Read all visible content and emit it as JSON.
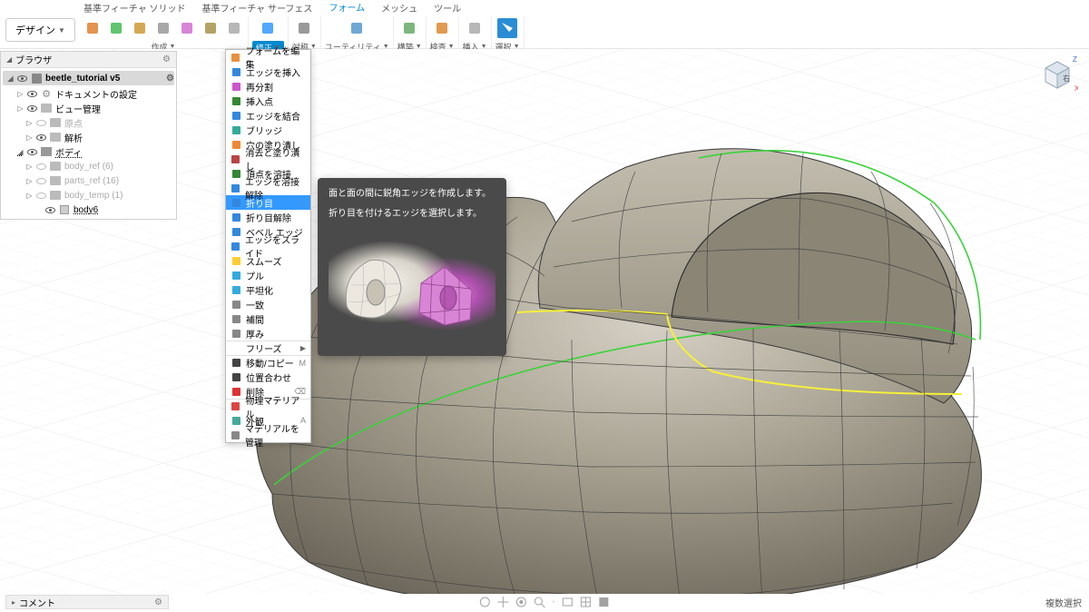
{
  "menuTabs": {
    "items": [
      "基準フィーチャ ソリッド",
      "基準フィーチャ サーフェス",
      "フォーム",
      "メッシュ",
      "ツール"
    ],
    "activeIndex": 2
  },
  "designButton": "デザイン",
  "ribbon": {
    "groups": [
      {
        "label": "作成",
        "icons": [
          {
            "c": "#e08030"
          },
          {
            "c": "#44bb55"
          },
          {
            "c": "#cc9933"
          },
          {
            "c": "#999"
          },
          {
            "c": "#d070d0"
          },
          {
            "c": "#a6944a"
          },
          {
            "c": "#aaa"
          }
        ]
      },
      {
        "label": "修正",
        "icons": [
          {
            "c": "#3399ff"
          }
        ],
        "active": true,
        "activeColor": "#0089d0"
      },
      {
        "label": "対称",
        "icons": [
          {
            "c": "#888"
          }
        ]
      },
      {
        "label": "ユーティリティ",
        "icons": [
          {
            "c": "#5599cc"
          }
        ]
      },
      {
        "label": "構築",
        "icons": [
          {
            "c": "#66aa66"
          }
        ]
      },
      {
        "label": "検査",
        "icons": [
          {
            "c": "#dd8833"
          }
        ]
      },
      {
        "label": "挿入",
        "icons": [
          {
            "c": "#aaa"
          }
        ]
      },
      {
        "label": "選択",
        "icons": [
          {
            "c": "#2a8dd4"
          }
        ],
        "filled": true
      }
    ]
  },
  "browser": {
    "title": "ブラウザ",
    "file": "beetle_tutorial v5",
    "items": [
      {
        "d": 1,
        "exp": "▷",
        "label": "ドキュメントの設定",
        "t": "gear"
      },
      {
        "d": 1,
        "exp": "▷",
        "label": "ビュー管理",
        "t": "folder"
      },
      {
        "d": 2,
        "exp": "▷",
        "label": "原点",
        "t": "folder",
        "dim": true
      },
      {
        "d": 2,
        "exp": "▷",
        "label": "解析",
        "t": "folder"
      },
      {
        "d": 1,
        "exp": "◢",
        "label": "ボディ",
        "t": "bodies",
        "hl": true
      },
      {
        "d": 2,
        "exp": "▷",
        "label": "body_ref (6)",
        "t": "folder",
        "dim": true
      },
      {
        "d": 2,
        "exp": "▷",
        "label": "parts_ref (16)",
        "t": "folder",
        "dim": true
      },
      {
        "d": 2,
        "exp": "▷",
        "label": "body_temp (1)",
        "t": "folder",
        "dim": true
      },
      {
        "d": 3,
        "exp": "",
        "label": "body6",
        "t": "body",
        "hl": true
      }
    ]
  },
  "dropdown": {
    "items": [
      {
        "label": "フォームを編集",
        "c": "#e89040"
      },
      {
        "label": "エッジを挿入",
        "c": "#3388dd"
      },
      {
        "label": "再分割",
        "c": "#cc55cc"
      },
      {
        "label": "挿入点",
        "c": "#338833"
      },
      {
        "label": "エッジを結合",
        "c": "#3388dd"
      },
      {
        "label": "ブリッジ",
        "c": "#33aa99"
      },
      {
        "label": "穴の塗り潰し",
        "c": "#ee8833"
      },
      {
        "label": "消去と塗り潰し",
        "c": "#bb4444"
      },
      {
        "label": "頂点を溶接",
        "c": "#338833"
      },
      {
        "label": "エッジを溶接解除",
        "c": "#3388dd"
      },
      {
        "label": "折り目",
        "c": "#3388dd",
        "hl": true,
        "dots": true
      },
      {
        "label": "折り目解除",
        "c": "#3388dd"
      },
      {
        "label": "ベベル エッジ",
        "c": "#3388dd"
      },
      {
        "label": "エッジをスライド",
        "c": "#3388dd"
      },
      {
        "label": "スムーズ",
        "c": "#ffcc33"
      },
      {
        "label": "プル",
        "c": "#33aadd"
      },
      {
        "label": "平坦化",
        "c": "#33aadd"
      },
      {
        "label": "一致",
        "c": "#888"
      },
      {
        "label": "補間",
        "c": "#888"
      },
      {
        "label": "厚み",
        "c": "#888"
      },
      {
        "label": "フリーズ",
        "sub": true,
        "sep": true
      },
      {
        "label": "移動/コピー",
        "c": "#444",
        "kb": "M",
        "sep": true
      },
      {
        "label": "位置合わせ",
        "c": "#444"
      },
      {
        "label": "削除",
        "c": "#dd3333",
        "kb": "⌫"
      },
      {
        "label": "物理マテリアル",
        "c": "#dd4444",
        "sep": true
      },
      {
        "label": "外観",
        "c": "#44aa99",
        "kb": "A"
      },
      {
        "label": "マテリアルを管理",
        "c": "#888"
      }
    ]
  },
  "tooltip": {
    "line1": "面と面の間に鋭角エッジを作成します。",
    "line2": "折り目を付けるエッジを選択します。"
  },
  "viewcube": {
    "face": "右"
  },
  "commentBar": "コメント",
  "status": "複数選択",
  "colors": {
    "modelBody": "#a8a193",
    "modelShadow": "#7b7568",
    "modelHighlight": "#d4cfc3",
    "greenEdge": "#3bd23b",
    "yellowEdge": "#f5f03a",
    "gridMajor": "#e5e5e5",
    "gridMinor": "#f3f3f3"
  }
}
